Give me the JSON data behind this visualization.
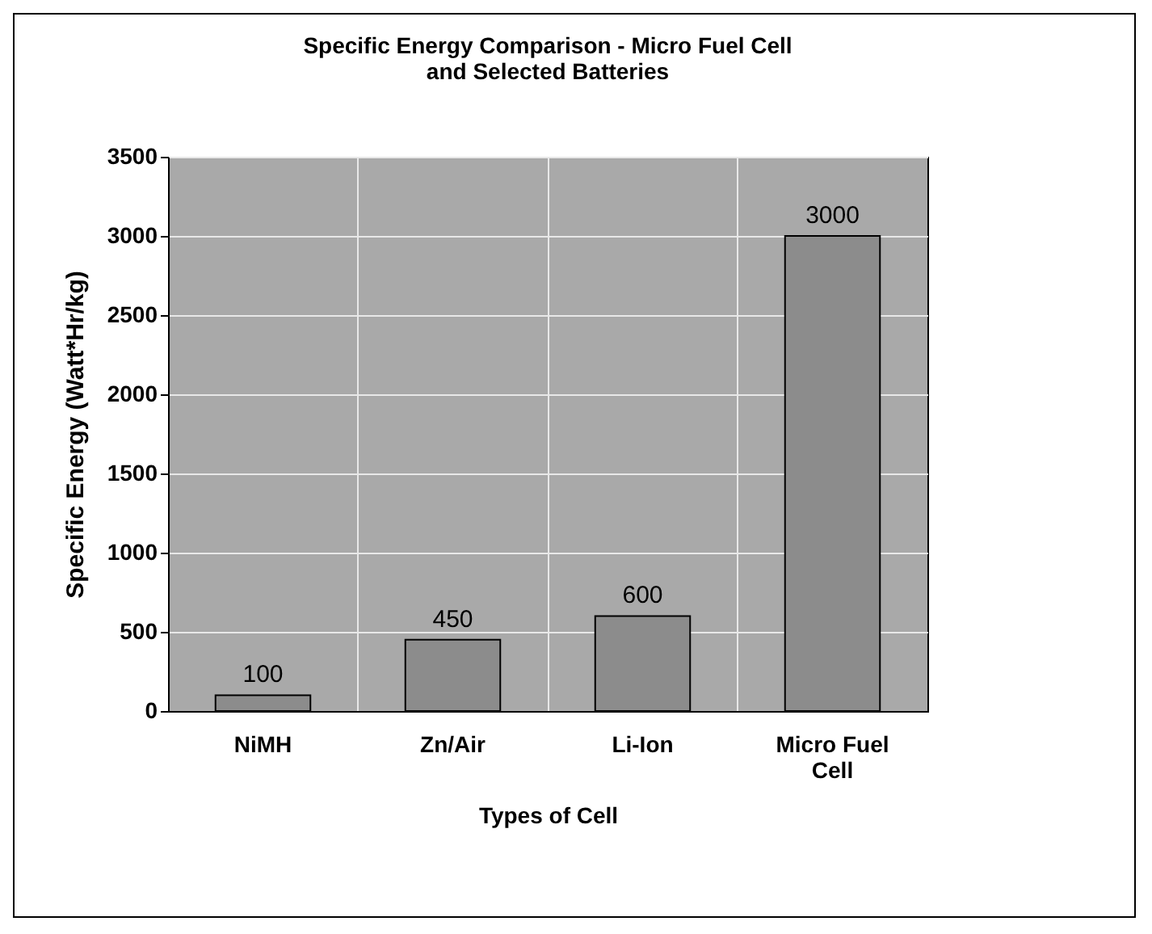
{
  "chart_data": {
    "type": "bar",
    "title": "Specific Energy Comparison - Micro Fuel Cell and Selected Batteries",
    "xlabel": "Types of Cell",
    "ylabel": "Specific Energy (Watt*Hr/kg)",
    "categories": [
      "NiMH",
      "Zn/Air",
      "Li-Ion",
      "Micro Fuel Cell"
    ],
    "values": [
      100,
      450,
      600,
      3000
    ],
    "color": "#8c8c8c",
    "ylim": [
      0,
      3500
    ],
    "yticks": [
      0,
      500,
      1000,
      1500,
      2000,
      2500,
      3000,
      3500
    ],
    "grid": true,
    "data_labels": true
  }
}
